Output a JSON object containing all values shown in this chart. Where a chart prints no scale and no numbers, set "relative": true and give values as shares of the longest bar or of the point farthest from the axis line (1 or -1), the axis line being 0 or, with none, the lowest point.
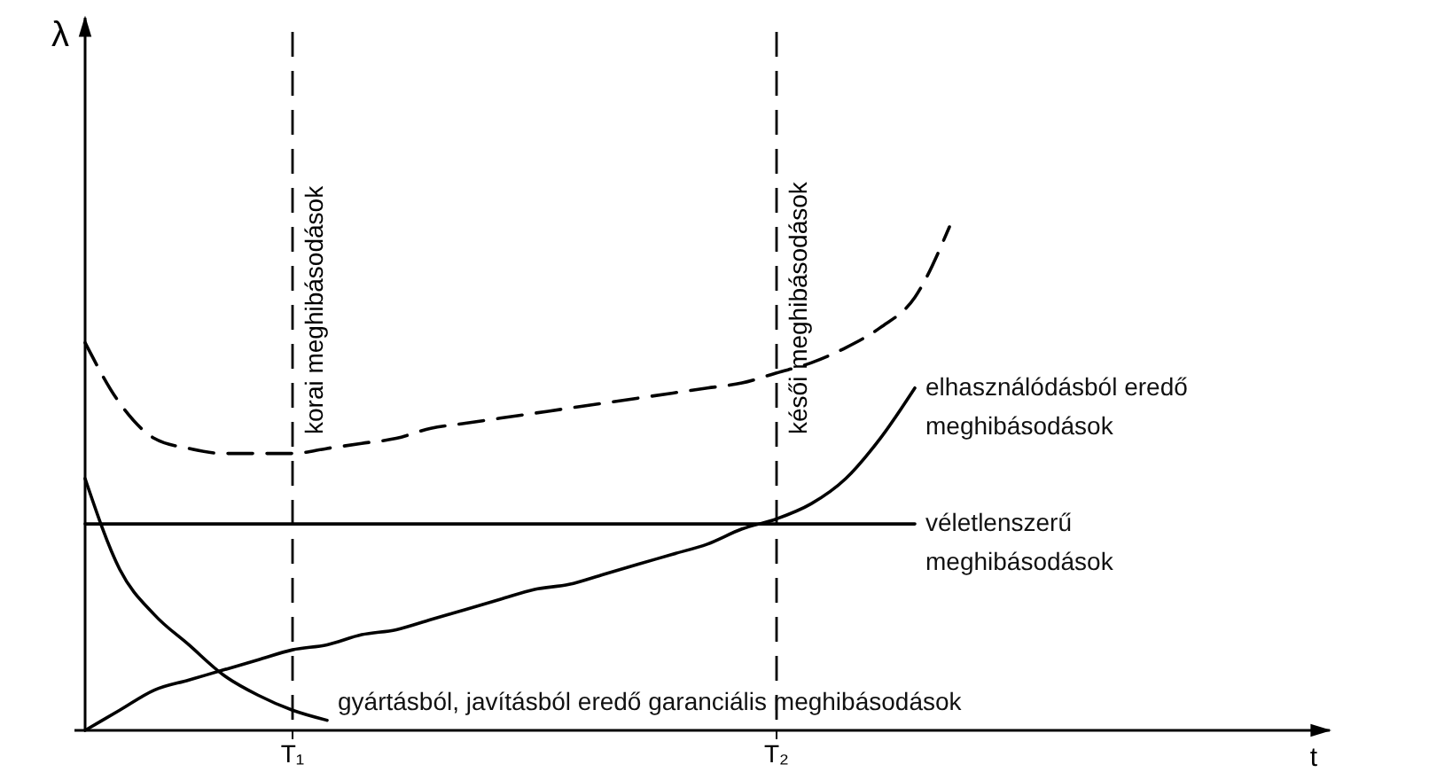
{
  "chart_data": {
    "type": "line",
    "relative": true,
    "xlabel": "t",
    "ylabel": "λ",
    "categories": [
      null,
      null,
      null,
      null,
      null,
      null,
      "T₁",
      null,
      null,
      null,
      null,
      null,
      null,
      null,
      null,
      null,
      null,
      null,
      null,
      null,
      "T₂",
      null,
      null,
      null,
      null,
      null,
      null,
      null,
      null,
      null,
      null,
      null,
      null,
      null,
      null,
      null
    ],
    "series": [
      {
        "color": "#000000",
        "line_style": "dashed",
        "values": [
          0.77,
          0.65,
          0.58,
          0.56,
          0.55,
          0.55,
          0.55,
          0.56,
          0.57,
          0.58,
          0.6,
          0.61,
          0.62,
          0.63,
          0.64,
          0.65,
          0.66,
          0.67,
          0.68,
          0.69,
          0.71,
          0.73,
          0.76,
          0.8,
          0.86,
          1,
          null,
          null,
          null,
          null,
          null,
          null,
          null,
          null,
          null,
          null
        ]
      },
      {
        "name": "véletlenszerű meghibásodások",
        "color": "#000000",
        "line_style": "solid",
        "values": [
          0.41,
          0.41,
          0.41,
          0.41,
          0.41,
          0.41,
          0.41,
          0.41,
          0.41,
          0.41,
          0.41,
          0.41,
          0.41,
          0.41,
          0.41,
          0.41,
          0.41,
          0.41,
          0.41,
          0.41,
          0.41,
          0.41,
          0.41,
          0.41,
          0.41,
          null,
          null,
          null,
          null,
          null,
          null,
          null,
          null,
          null,
          null,
          null
        ]
      },
      {
        "name": "gyártásból, javításból eredő garanciális meghibásodások",
        "color": "#000000",
        "line_style": "solid",
        "values": [
          0.5,
          0.32,
          0.23,
          0.17,
          0.11,
          0.07,
          0.04,
          0.02,
          null,
          null,
          null,
          null,
          null,
          null,
          null,
          null,
          null,
          null,
          null,
          null,
          null,
          null,
          null,
          null,
          null,
          null,
          null,
          null,
          null,
          null,
          null,
          null,
          null,
          null,
          null,
          null
        ]
      },
      {
        "name": "elhasználódásból eredő meghibásodások",
        "color": "#000000",
        "line_style": "solid",
        "values": [
          0,
          0.04,
          0.08,
          0.1,
          0.12,
          0.14,
          0.16,
          0.17,
          0.19,
          0.2,
          0.22,
          0.24,
          0.26,
          0.28,
          0.29,
          0.31,
          0.33,
          0.35,
          0.37,
          0.4,
          0.42,
          0.45,
          0.5,
          0.58,
          0.68,
          null,
          null,
          null,
          null,
          null,
          null,
          null,
          null,
          null,
          null,
          null
        ]
      }
    ],
    "ref_lines": [
      {
        "axis": "x",
        "value": "T₁",
        "label": "korai meghibásodások",
        "line_style": "dashed",
        "color": "#000000"
      },
      {
        "axis": "x",
        "value": "T₂",
        "label": "késői meghibásodások",
        "line_style": "dashed",
        "color": "#000000"
      }
    ]
  }
}
